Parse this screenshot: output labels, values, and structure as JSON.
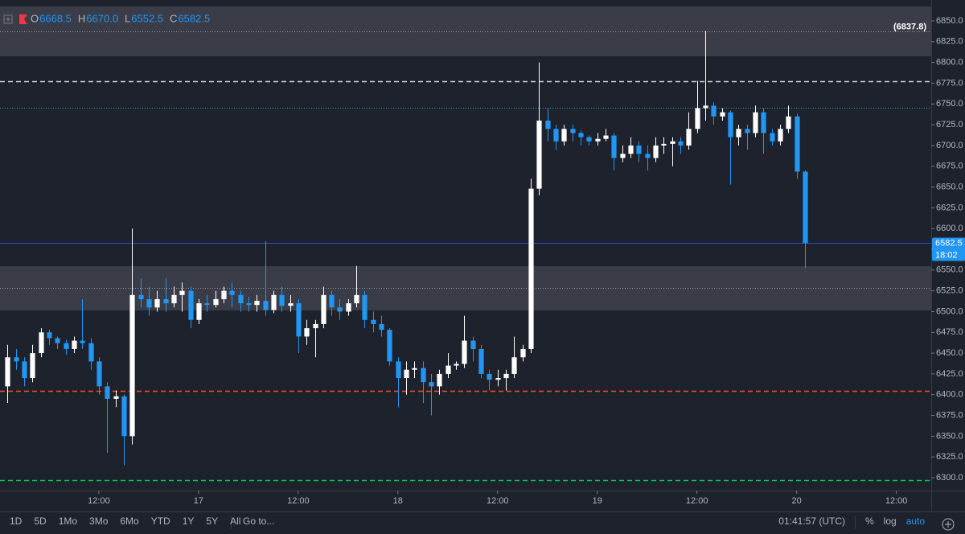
{
  "chart_data": {
    "type": "candlestick",
    "legend": {
      "keys": [
        "O",
        "H",
        "L",
        "C"
      ],
      "values": [
        "6668.5",
        "6670.0",
        "6552.5",
        "6582.5"
      ]
    },
    "up_color": "#ffffff",
    "down_color": "#2196f3",
    "x": [
      1,
      2,
      3,
      4,
      5,
      6,
      7,
      8,
      9,
      10,
      11,
      12,
      13,
      14,
      15,
      16,
      17,
      18,
      19,
      20,
      21,
      22,
      23,
      24,
      25,
      26,
      27,
      28,
      29,
      30,
      31,
      32,
      33,
      34,
      35,
      36,
      37,
      38,
      39,
      40,
      41,
      42,
      43,
      44,
      45,
      46,
      47,
      48,
      49,
      50,
      51,
      52,
      53,
      54,
      55,
      56,
      57,
      58,
      59,
      60,
      61,
      62,
      63,
      64,
      65,
      66,
      67,
      68,
      69,
      70,
      71,
      72,
      73,
      74,
      75,
      76,
      77,
      78,
      79,
      80,
      81,
      82,
      83,
      84,
      85,
      86,
      87,
      88,
      89,
      90,
      91,
      92,
      93,
      94,
      95,
      96,
      97
    ],
    "open": [
      6410,
      6445,
      6440,
      6420,
      6450,
      6475,
      6468,
      6462,
      6455,
      6465,
      6462,
      6440,
      6410,
      6395,
      6398,
      6350,
      6520,
      6515,
      6505,
      6515,
      6510,
      6520,
      6525,
      6490,
      6510,
      6508,
      6515,
      6525,
      6520,
      6510,
      6508,
      6513,
      6502,
      6520,
      6507,
      6510,
      6470,
      6480,
      6485,
      6520,
      6505,
      6500,
      6510,
      6520,
      6490,
      6485,
      6478,
      6440,
      6420,
      6430,
      6432,
      6415,
      6410,
      6425,
      6435,
      6437,
      6465,
      6455,
      6425,
      6418,
      6420,
      6425,
      6445,
      6455,
      6648,
      6730,
      6720,
      6705,
      6720,
      6715,
      6710,
      6705,
      6708,
      6712,
      6685,
      6690,
      6700,
      6690,
      6685,
      6700,
      6702,
      6705,
      6700,
      6720,
      6745,
      6748,
      6735,
      6740,
      6710,
      6720,
      6715,
      6740,
      6715,
      6705,
      6720,
      6735,
      6668.5
    ],
    "high": [
      6460,
      6455,
      6445,
      6460,
      6480,
      6478,
      6470,
      6466,
      6470,
      6515,
      6468,
      6445,
      6415,
      6405,
      6400,
      6600,
      6540,
      6530,
      6525,
      6540,
      6530,
      6535,
      6530,
      6515,
      6520,
      6525,
      6530,
      6535,
      6525,
      6518,
      6520,
      6585,
      6525,
      6530,
      6520,
      6515,
      6490,
      6490,
      6530,
      6525,
      6515,
      6515,
      6555,
      6525,
      6500,
      6495,
      6480,
      6445,
      6440,
      6440,
      6440,
      6425,
      6430,
      6450,
      6440,
      6495,
      6470,
      6460,
      6430,
      6430,
      6430,
      6470,
      6460,
      6660,
      6800,
      6745,
      6725,
      6725,
      6725,
      6718,
      6712,
      6715,
      6720,
      6715,
      6700,
      6710,
      6705,
      6700,
      6710,
      6710,
      6710,
      6710,
      6740,
      6778,
      6837.8,
      6752,
      6745,
      6742,
      6725,
      6725,
      6748,
      6745,
      6720,
      6725,
      6748,
      6738,
      6670
    ],
    "low": [
      6390,
      6430,
      6410,
      6415,
      6445,
      6460,
      6455,
      6448,
      6450,
      6455,
      6430,
      6400,
      6330,
      6385,
      6315,
      6340,
      6505,
      6495,
      6500,
      6500,
      6505,
      6500,
      6480,
      6485,
      6500,
      6505,
      6510,
      6505,
      6500,
      6500,
      6500,
      6495,
      6498,
      6500,
      6500,
      6450,
      6460,
      6445,
      6480,
      6495,
      6490,
      6495,
      6505,
      6480,
      6475,
      6470,
      6435,
      6385,
      6400,
      6420,
      6390,
      6375,
      6400,
      6420,
      6430,
      6432,
      6440,
      6420,
      6405,
      6410,
      6405,
      6420,
      6440,
      6450,
      6640,
      6705,
      6695,
      6700,
      6705,
      6700,
      6700,
      6700,
      6705,
      6670,
      6680,
      6685,
      6680,
      6670,
      6680,
      6690,
      6675,
      6690,
      6695,
      6715,
      6730,
      6725,
      6730,
      6653,
      6700,
      6695,
      6710,
      6690,
      6700,
      6700,
      6715,
      6660,
      6552.5
    ],
    "close": [
      6445,
      6440,
      6420,
      6450,
      6475,
      6468,
      6462,
      6455,
      6465,
      6462,
      6440,
      6410,
      6395,
      6398,
      6350,
      6520,
      6515,
      6505,
      6515,
      6510,
      6520,
      6525,
      6490,
      6510,
      6508,
      6515,
      6525,
      6520,
      6510,
      6508,
      6513,
      6502,
      6520,
      6507,
      6510,
      6470,
      6480,
      6485,
      6520,
      6505,
      6500,
      6510,
      6520,
      6490,
      6485,
      6478,
      6440,
      6420,
      6430,
      6432,
      6415,
      6410,
      6425,
      6435,
      6437,
      6465,
      6455,
      6425,
      6418,
      6420,
      6425,
      6445,
      6455,
      6648,
      6730,
      6720,
      6705,
      6720,
      6715,
      6710,
      6705,
      6708,
      6712,
      6685,
      6690,
      6700,
      6690,
      6685,
      6700,
      6702,
      6705,
      6700,
      6720,
      6745,
      6748,
      6735,
      6740,
      6710,
      6720,
      6715,
      6740,
      6715,
      6705,
      6720,
      6735,
      6668.5,
      6582.5
    ],
    "xlim": [
      0.1,
      112.2
    ],
    "xticks": [
      {
        "value": 12,
        "label": "12:00"
      },
      {
        "value": 24,
        "label": "17"
      },
      {
        "value": 36,
        "label": "12:00"
      },
      {
        "value": 48,
        "label": "18"
      },
      {
        "value": 60,
        "label": "12:00"
      },
      {
        "value": 72,
        "label": "19"
      },
      {
        "value": 84,
        "label": "12:00"
      },
      {
        "value": 96,
        "label": "20"
      },
      {
        "value": 108,
        "label": "12:00"
      }
    ],
    "ylim": [
      6284.5,
      6875.2
    ],
    "yticks": [
      {
        "value": 6300,
        "label": "6300.0"
      },
      {
        "value": 6325,
        "label": "6325.0"
      },
      {
        "value": 6350,
        "label": "6350.0"
      },
      {
        "value": 6375,
        "label": "6375.0"
      },
      {
        "value": 6400,
        "label": "6400.0"
      },
      {
        "value": 6425,
        "label": "6425.0"
      },
      {
        "value": 6450,
        "label": "6450.0"
      },
      {
        "value": 6475,
        "label": "6475.0"
      },
      {
        "value": 6500,
        "label": "6500.0"
      },
      {
        "value": 6525,
        "label": "6525.0"
      },
      {
        "value": 6550,
        "label": "6550.0"
      },
      {
        "value": 6575,
        "label": "6575.0"
      },
      {
        "value": 6600,
        "label": "6600.0"
      },
      {
        "value": 6625,
        "label": "6625.0"
      },
      {
        "value": 6650,
        "label": "6650.0"
      },
      {
        "value": 6675,
        "label": "6675.0"
      },
      {
        "value": 6700,
        "label": "6700.0"
      },
      {
        "value": 6725,
        "label": "6725.0"
      },
      {
        "value": 6750,
        "label": "6750.0"
      },
      {
        "value": 6775,
        "label": "6775.0"
      },
      {
        "value": 6800,
        "label": "6800.0"
      },
      {
        "value": 6825,
        "label": "6825.0"
      },
      {
        "value": 6850,
        "label": "6850.0"
      }
    ],
    "zones": [
      {
        "from": 6807.4,
        "to": 6867.4,
        "color": "#3a3d47"
      },
      {
        "from": 6501.4,
        "to": 6554.7,
        "color": "#3a3d47"
      }
    ],
    "levels": [
      {
        "value": 6837.8,
        "label": "(6837.8)",
        "color": "#9598a1",
        "dash": "dotted"
      },
      {
        "value": 6777,
        "color": "#d1d4dc",
        "dash": "dashed"
      },
      {
        "value": 6745,
        "color": "#26a69a",
        "dash": "dotted"
      },
      {
        "value": 6528.5,
        "color": "#9598a1",
        "dash": "dotted"
      },
      {
        "value": 6405,
        "color": "#f4511e",
        "dash": "dashed"
      },
      {
        "value": 6297,
        "color": "#00c853",
        "dash": "dashed"
      }
    ],
    "countdown": "18:02",
    "toolbar": {
      "ranges": [
        "1D",
        "5D",
        "1Mo",
        "3Mo",
        "6Mo",
        "YTD",
        "1Y",
        "5Y",
        "All"
      ],
      "goto": "Go to...",
      "clock": "01:41:57 (UTC)",
      "options": [
        "%",
        "log",
        "auto"
      ],
      "active_option": 2
    }
  }
}
